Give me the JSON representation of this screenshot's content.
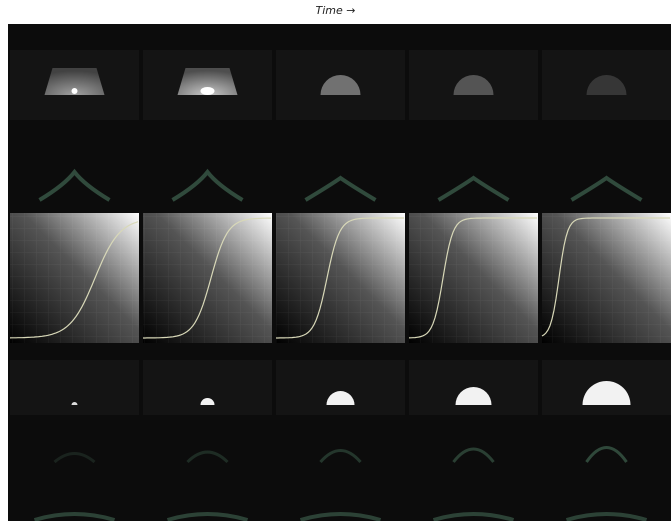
{
  "header": {
    "title": "Time →"
  }
}
